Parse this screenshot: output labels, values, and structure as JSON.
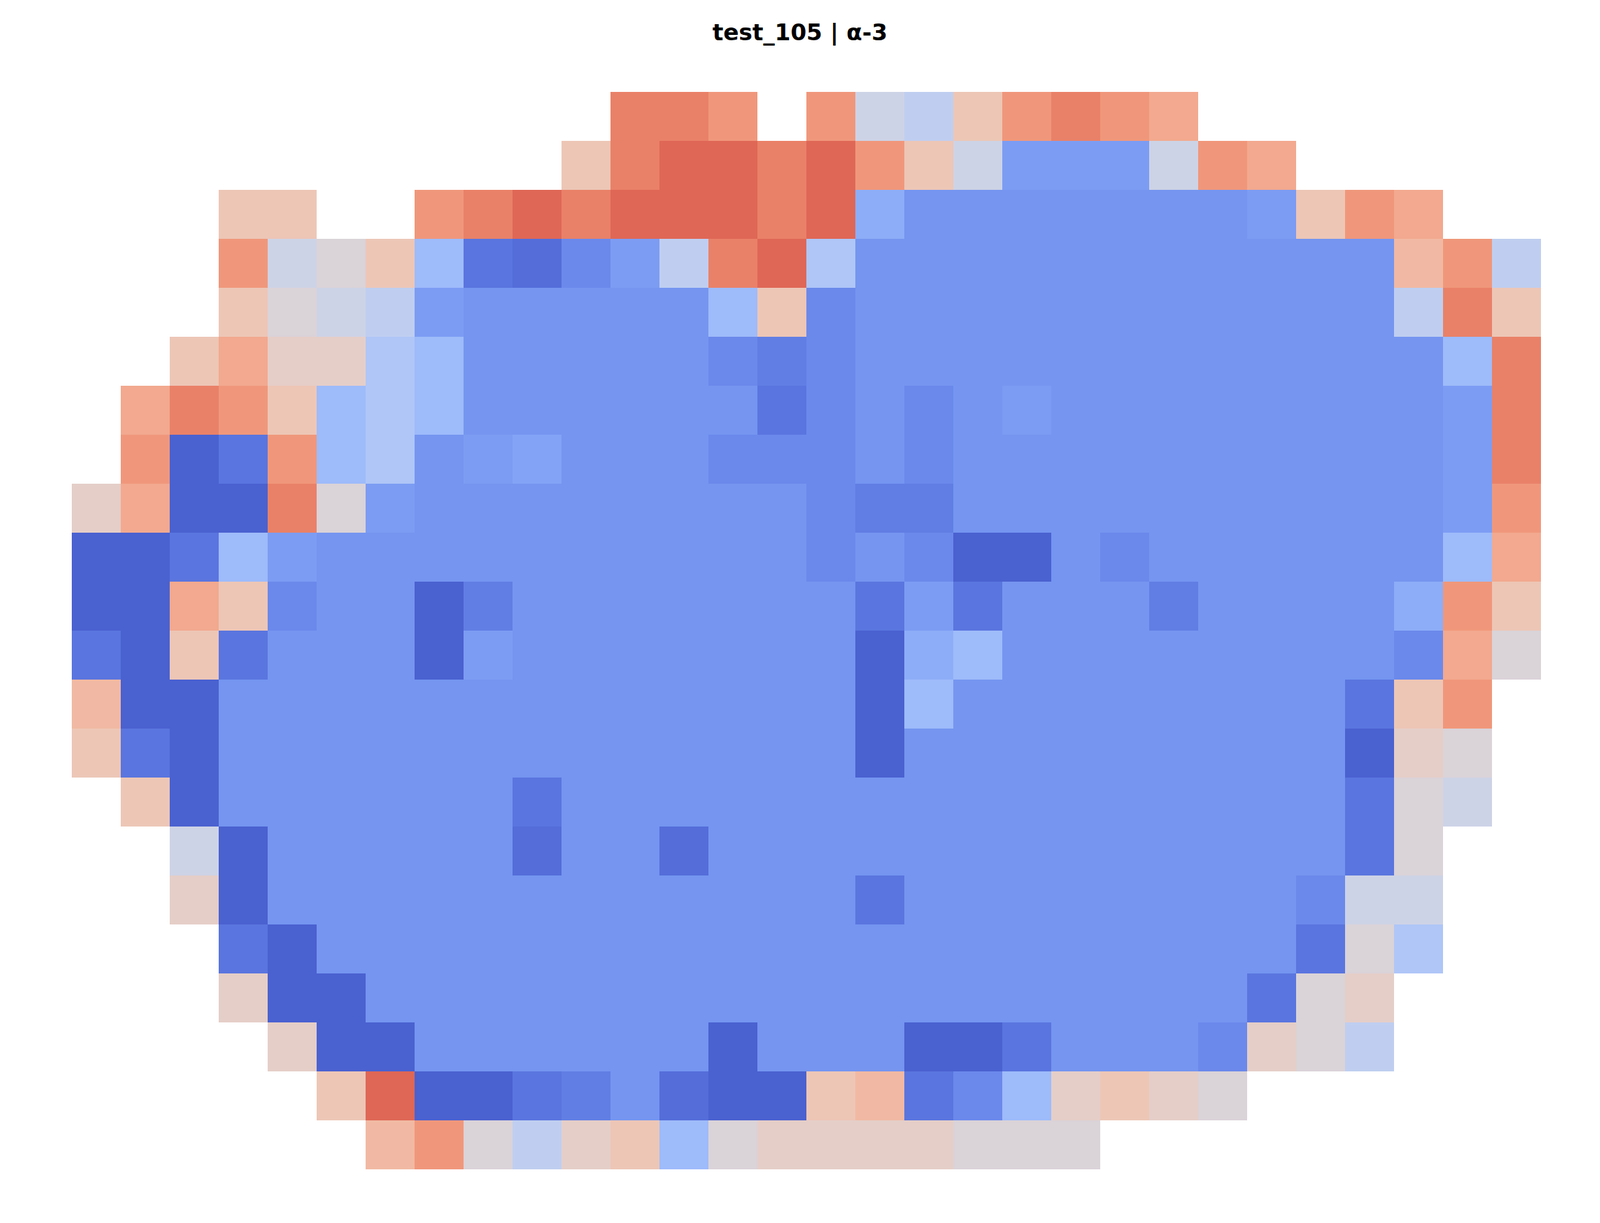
{
  "chart_data": {
    "type": "heatmap",
    "title": "test_105 | α-3",
    "tick_labels": false,
    "grid": false,
    "color": "coolwarm",
    "zlim": [
      0,
      1
    ],
    "cells": [
      [
        null,
        null,
        null,
        null,
        null,
        null,
        null,
        null,
        null,
        null,
        null,
        0.8,
        0.8,
        0.75,
        null,
        0.75,
        0.45,
        0.4,
        0.6,
        0.75,
        0.8,
        0.75,
        0.7,
        null,
        null,
        null,
        null,
        null,
        null,
        null
      ],
      [
        null,
        null,
        null,
        null,
        null,
        null,
        null,
        null,
        null,
        null,
        0.6,
        0.8,
        0.85,
        0.85,
        0.8,
        0.85,
        0.75,
        0.6,
        0.45,
        0.2,
        0.2,
        0.2,
        0.45,
        0.75,
        0.7,
        null,
        null,
        null,
        null,
        null
      ],
      [
        null,
        null,
        null,
        0.6,
        0.6,
        null,
        null,
        0.75,
        0.8,
        0.85,
        0.8,
        0.85,
        0.85,
        0.85,
        0.8,
        0.85,
        0.25,
        0.18,
        0.18,
        0.18,
        0.18,
        0.18,
        0.18,
        0.18,
        0.2,
        0.6,
        0.75,
        0.7,
        null,
        null
      ],
      [
        null,
        null,
        null,
        0.75,
        0.45,
        0.5,
        0.6,
        0.3,
        0.1,
        0.08,
        0.15,
        0.2,
        0.4,
        0.8,
        0.85,
        0.35,
        0.18,
        0.18,
        0.18,
        0.18,
        0.18,
        0.18,
        0.18,
        0.18,
        0.18,
        0.18,
        0.18,
        0.65,
        0.75,
        0.4
      ],
      [
        null,
        null,
        null,
        0.6,
        0.5,
        0.45,
        0.4,
        0.2,
        0.18,
        0.18,
        0.18,
        0.18,
        0.18,
        0.3,
        0.6,
        0.15,
        0.18,
        0.18,
        0.18,
        0.18,
        0.18,
        0.18,
        0.18,
        0.18,
        0.18,
        0.18,
        0.18,
        0.4,
        0.8,
        0.6
      ],
      [
        null,
        null,
        0.6,
        0.7,
        0.55,
        0.55,
        0.35,
        0.3,
        0.18,
        0.18,
        0.18,
        0.18,
        0.18,
        0.15,
        0.12,
        0.15,
        0.18,
        0.18,
        0.18,
        0.18,
        0.18,
        0.18,
        0.18,
        0.18,
        0.18,
        0.18,
        0.18,
        0.18,
        0.3,
        0.8
      ],
      [
        null,
        0.7,
        0.8,
        0.75,
        0.6,
        0.3,
        0.35,
        0.3,
        0.18,
        0.18,
        0.18,
        0.18,
        0.18,
        0.18,
        0.1,
        0.15,
        0.18,
        0.15,
        0.18,
        0.2,
        0.18,
        0.18,
        0.18,
        0.18,
        0.18,
        0.18,
        0.18,
        0.18,
        0.2,
        0.8
      ],
      [
        null,
        0.75,
        0.05,
        0.1,
        0.75,
        0.3,
        0.35,
        0.18,
        0.2,
        0.22,
        0.18,
        0.18,
        0.18,
        0.15,
        0.15,
        0.15,
        0.18,
        0.15,
        0.18,
        0.18,
        0.18,
        0.18,
        0.18,
        0.18,
        0.18,
        0.18,
        0.18,
        0.18,
        0.2,
        0.8
      ],
      [
        0.55,
        0.7,
        0.05,
        0.05,
        0.8,
        0.5,
        0.2,
        0.18,
        0.18,
        0.18,
        0.18,
        0.18,
        0.18,
        0.18,
        0.18,
        0.15,
        0.12,
        0.12,
        0.18,
        0.18,
        0.18,
        0.18,
        0.18,
        0.18,
        0.18,
        0.18,
        0.18,
        0.18,
        0.2,
        0.75
      ],
      [
        0.05,
        0.05,
        0.1,
        0.3,
        0.2,
        0.18,
        0.18,
        0.18,
        0.18,
        0.18,
        0.18,
        0.18,
        0.18,
        0.18,
        0.18,
        0.15,
        0.18,
        0.15,
        0.05,
        0.05,
        0.18,
        0.15,
        0.18,
        0.18,
        0.18,
        0.18,
        0.18,
        0.18,
        0.3,
        0.7
      ],
      [
        0.05,
        0.05,
        0.7,
        0.6,
        0.15,
        0.18,
        0.18,
        0.05,
        0.12,
        0.18,
        0.18,
        0.18,
        0.18,
        0.18,
        0.18,
        0.18,
        0.1,
        0.2,
        0.1,
        0.18,
        0.18,
        0.18,
        0.12,
        0.18,
        0.18,
        0.18,
        0.18,
        0.25,
        0.75,
        0.6
      ],
      [
        0.1,
        0.05,
        0.6,
        0.1,
        0.18,
        0.18,
        0.18,
        0.05,
        0.2,
        0.18,
        0.18,
        0.18,
        0.18,
        0.18,
        0.18,
        0.18,
        0.05,
        0.25,
        0.3,
        0.18,
        0.18,
        0.18,
        0.18,
        0.18,
        0.18,
        0.18,
        0.18,
        0.15,
        0.7,
        0.5
      ],
      [
        0.65,
        0.05,
        0.05,
        0.18,
        0.18,
        0.18,
        0.18,
        0.18,
        0.18,
        0.18,
        0.18,
        0.18,
        0.18,
        0.18,
        0.18,
        0.18,
        0.05,
        0.3,
        0.18,
        0.18,
        0.18,
        0.18,
        0.18,
        0.18,
        0.18,
        0.18,
        0.1,
        0.6,
        0.75,
        null
      ],
      [
        0.6,
        0.1,
        0.05,
        0.18,
        0.18,
        0.18,
        0.18,
        0.18,
        0.18,
        0.18,
        0.18,
        0.18,
        0.18,
        0.18,
        0.18,
        0.18,
        0.05,
        0.18,
        0.18,
        0.18,
        0.18,
        0.18,
        0.18,
        0.18,
        0.18,
        0.18,
        0.05,
        0.55,
        0.5,
        null
      ],
      [
        null,
        0.6,
        0.05,
        0.18,
        0.18,
        0.18,
        0.18,
        0.18,
        0.18,
        0.1,
        0.18,
        0.18,
        0.18,
        0.18,
        0.18,
        0.18,
        0.18,
        0.18,
        0.18,
        0.18,
        0.18,
        0.18,
        0.18,
        0.18,
        0.18,
        0.18,
        0.1,
        0.5,
        0.45,
        null
      ],
      [
        null,
        null,
        0.45,
        0.05,
        0.18,
        0.18,
        0.18,
        0.18,
        0.18,
        0.08,
        0.18,
        0.18,
        0.08,
        0.18,
        0.18,
        0.18,
        0.18,
        0.18,
        0.18,
        0.18,
        0.18,
        0.18,
        0.18,
        0.18,
        0.18,
        0.18,
        0.1,
        0.5,
        null,
        null
      ],
      [
        null,
        null,
        0.55,
        0.05,
        0.18,
        0.18,
        0.18,
        0.18,
        0.18,
        0.18,
        0.18,
        0.18,
        0.18,
        0.18,
        0.18,
        0.18,
        0.1,
        0.18,
        0.18,
        0.18,
        0.18,
        0.18,
        0.18,
        0.18,
        0.18,
        0.15,
        0.45,
        0.45,
        null,
        null
      ],
      [
        null,
        null,
        null,
        0.1,
        0.05,
        0.18,
        0.18,
        0.18,
        0.18,
        0.18,
        0.18,
        0.18,
        0.18,
        0.18,
        0.18,
        0.18,
        0.18,
        0.18,
        0.18,
        0.18,
        0.18,
        0.18,
        0.18,
        0.18,
        0.18,
        0.1,
        0.5,
        0.35,
        null,
        null
      ],
      [
        null,
        null,
        null,
        0.55,
        0.05,
        0.05,
        0.18,
        0.18,
        0.18,
        0.18,
        0.18,
        0.18,
        0.18,
        0.18,
        0.18,
        0.18,
        0.18,
        0.18,
        0.18,
        0.18,
        0.18,
        0.18,
        0.18,
        0.18,
        0.1,
        0.5,
        0.55,
        null,
        null,
        null
      ],
      [
        null,
        null,
        null,
        null,
        0.55,
        0.05,
        0.05,
        0.18,
        0.18,
        0.18,
        0.18,
        0.18,
        0.18,
        0.05,
        0.18,
        0.18,
        0.18,
        0.05,
        0.05,
        0.1,
        0.18,
        0.18,
        0.18,
        0.15,
        0.55,
        0.5,
        0.4,
        null,
        null,
        null
      ],
      [
        null,
        null,
        null,
        null,
        null,
        0.6,
        0.85,
        0.05,
        0.05,
        0.1,
        0.12,
        0.18,
        0.08,
        0.05,
        0.05,
        0.6,
        0.65,
        0.1,
        0.15,
        0.3,
        0.55,
        0.6,
        0.55,
        0.5,
        null,
        null,
        null,
        null,
        null,
        null
      ],
      [
        null,
        null,
        null,
        null,
        null,
        null,
        0.65,
        0.75,
        0.5,
        0.4,
        0.55,
        0.6,
        0.3,
        0.5,
        0.55,
        0.55,
        0.55,
        0.55,
        0.5,
        0.5,
        0.5,
        null,
        null,
        null,
        null,
        null,
        null,
        null,
        null,
        null
      ]
    ]
  }
}
